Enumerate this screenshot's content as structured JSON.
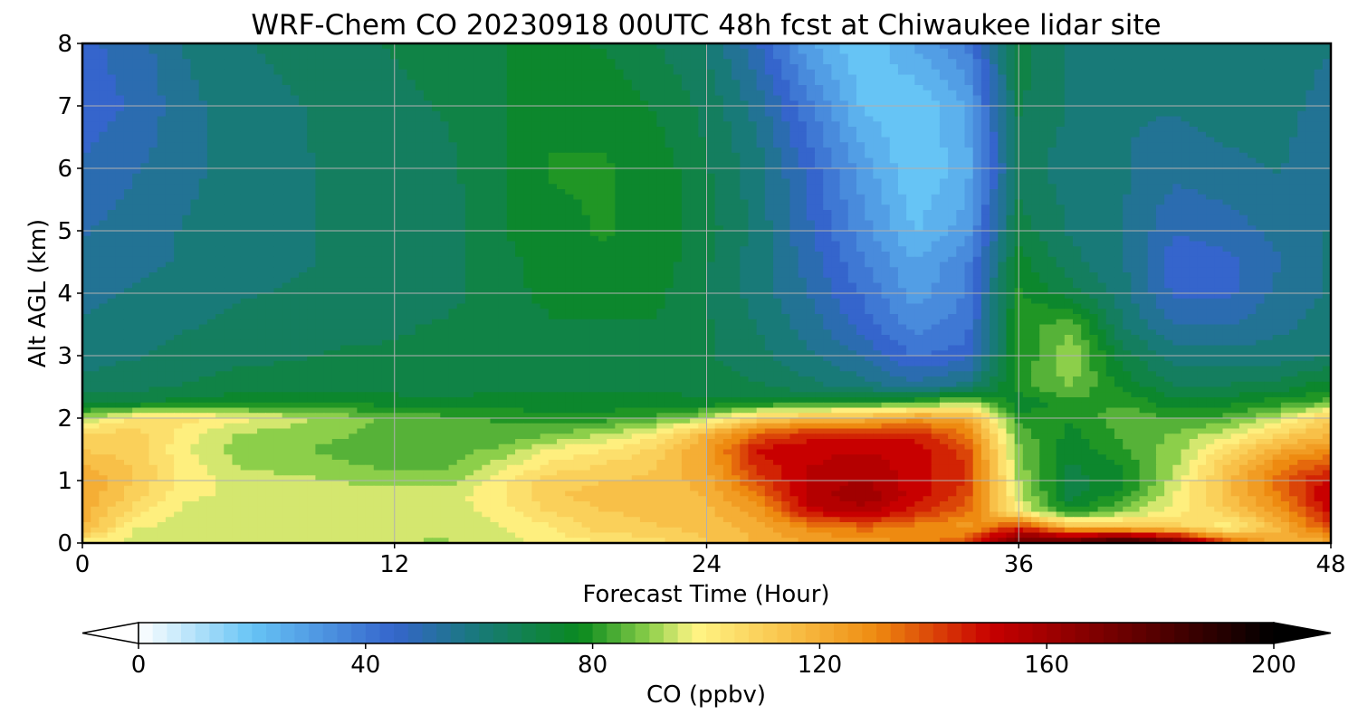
{
  "chart_data": {
    "type": "heatmap",
    "title": "WRF-Chem CO  20230918 00UTC 48h fcst at Chiwaukee lidar site",
    "xlabel": "Forecast Time (Hour)",
    "ylabel": "Alt AGL (km)",
    "xlim": [
      0,
      48
    ],
    "ylim": [
      0,
      8
    ],
    "xticks": [
      0,
      12,
      24,
      36,
      48
    ],
    "yticks": [
      0,
      1,
      2,
      3,
      4,
      5,
      6,
      7,
      8
    ],
    "grid": true,
    "colorbar": {
      "label": "CO  (ppbv)",
      "range": [
        0,
        200
      ],
      "ticks": [
        0,
        40,
        80,
        120,
        160,
        200
      ],
      "extend": "both",
      "stops": [
        {
          "value": 0,
          "color": "#ffffff"
        },
        {
          "value": 20,
          "color": "#66c4f5"
        },
        {
          "value": 45,
          "color": "#3565cc"
        },
        {
          "value": 60,
          "color": "#187a78"
        },
        {
          "value": 78,
          "color": "#0a8a1e"
        },
        {
          "value": 90,
          "color": "#8ccf4a"
        },
        {
          "value": 98,
          "color": "#fff585"
        },
        {
          "value": 115,
          "color": "#f8c048"
        },
        {
          "value": 130,
          "color": "#ee8a10"
        },
        {
          "value": 150,
          "color": "#c80000"
        },
        {
          "value": 175,
          "color": "#660000"
        },
        {
          "value": 200,
          "color": "#000000"
        }
      ]
    },
    "field": {
      "hours": [
        0,
        2,
        4,
        6,
        8,
        10,
        12,
        14,
        16,
        18,
        20,
        22,
        24,
        26,
        28,
        30,
        32,
        34,
        36,
        38,
        40,
        42,
        44,
        46,
        48
      ],
      "altitudes_km": [
        0,
        0.25,
        0.5,
        0.75,
        1.0,
        1.25,
        1.5,
        1.75,
        2.0,
        2.25,
        2.5,
        3.0,
        3.5,
        4.0,
        4.5,
        5.0,
        6.0,
        7.0,
        8.0
      ],
      "co_ppbv": [
        [
          100,
          95,
          93,
          93,
          93,
          93,
          93,
          92,
          95,
          100,
          102,
          105,
          112,
          118,
          122,
          125,
          128,
          140,
          178,
          180,
          195,
          178,
          140,
          118,
          120
        ],
        [
          118,
          98,
          95,
          94,
          94,
          94,
          93,
          93,
          97,
          102,
          110,
          112,
          115,
          120,
          130,
          135,
          130,
          125,
          145,
          118,
          115,
          110,
          98,
          118,
          140
        ],
        [
          120,
          105,
          96,
          96,
          96,
          95,
          95,
          94,
          100,
          108,
          112,
          114,
          116,
          125,
          150,
          155,
          145,
          135,
          100,
          78,
          90,
          100,
          110,
          125,
          150
        ],
        [
          122,
          110,
          98,
          97,
          97,
          96,
          96,
          95,
          102,
          112,
          115,
          115,
          118,
          132,
          155,
          162,
          150,
          140,
          95,
          70,
          80,
          98,
          115,
          132,
          155
        ],
        [
          122,
          112,
          100,
          96,
          94,
          92,
          90,
          90,
          100,
          110,
          112,
          114,
          120,
          140,
          155,
          158,
          150,
          142,
          92,
          70,
          76,
          95,
          115,
          135,
          150
        ],
        [
          118,
          112,
          100,
          92,
          90,
          88,
          86,
          86,
          95,
          104,
          108,
          112,
          122,
          145,
          152,
          155,
          150,
          142,
          90,
          72,
          78,
          92,
          112,
          130,
          140
        ],
        [
          112,
          110,
          98,
          90,
          88,
          86,
          85,
          85,
          88,
          98,
          102,
          108,
          124,
          148,
          152,
          152,
          150,
          140,
          88,
          74,
          82,
          90,
          105,
          120,
          128
        ],
        [
          108,
          110,
          100,
          92,
          90,
          88,
          86,
          84,
          84,
          86,
          92,
          100,
          118,
          135,
          145,
          145,
          145,
          132,
          85,
          76,
          84,
          88,
          95,
          108,
          118
        ],
        [
          92,
          104,
          104,
          100,
          95,
          90,
          86,
          84,
          82,
          80,
          80,
          84,
          92,
          110,
          115,
          118,
          125,
          122,
          80,
          78,
          86,
          82,
          84,
          95,
          112
        ],
        [
          70,
          72,
          75,
          76,
          76,
          76,
          75,
          74,
          74,
          74,
          74,
          74,
          74,
          76,
          78,
          80,
          82,
          92,
          74,
          80,
          82,
          74,
          76,
          80,
          85
        ],
        [
          65,
          66,
          68,
          70,
          70,
          70,
          70,
          70,
          72,
          72,
          72,
          72,
          70,
          68,
          64,
          60,
          55,
          60,
          80,
          88,
          76,
          68,
          68,
          70,
          76
        ],
        [
          60,
          62,
          64,
          66,
          67,
          68,
          68,
          68,
          70,
          70,
          70,
          70,
          68,
          64,
          58,
          52,
          42,
          45,
          78,
          92,
          70,
          60,
          60,
          60,
          62
        ],
        [
          58,
          60,
          62,
          64,
          65,
          66,
          67,
          68,
          70,
          72,
          72,
          72,
          68,
          62,
          55,
          45,
          35,
          40,
          80,
          85,
          62,
          52,
          52,
          56,
          60
        ],
        [
          56,
          58,
          60,
          62,
          63,
          64,
          65,
          66,
          70,
          74,
          74,
          74,
          68,
          60,
          52,
          42,
          30,
          38,
          78,
          70,
          60,
          46,
          46,
          54,
          58
        ],
        [
          55,
          56,
          58,
          60,
          62,
          63,
          64,
          66,
          70,
          76,
          76,
          76,
          68,
          60,
          50,
          38,
          28,
          36,
          75,
          64,
          58,
          44,
          46,
          52,
          58
        ],
        [
          52,
          55,
          58,
          60,
          62,
          63,
          64,
          65,
          72,
          76,
          78,
          76,
          70,
          60,
          48,
          35,
          22,
          30,
          70,
          62,
          58,
          48,
          50,
          54,
          58
        ],
        [
          48,
          52,
          56,
          60,
          62,
          63,
          64,
          66,
          72,
          78,
          78,
          76,
          68,
          60,
          45,
          30,
          18,
          25,
          65,
          60,
          58,
          54,
          56,
          58,
          52
        ],
        [
          45,
          48,
          56,
          60,
          62,
          64,
          66,
          68,
          72,
          76,
          76,
          72,
          66,
          55,
          38,
          22,
          18,
          28,
          68,
          62,
          58,
          58,
          60,
          60,
          55
        ],
        [
          46,
          50,
          58,
          62,
          64,
          66,
          68,
          70,
          72,
          74,
          72,
          68,
          62,
          48,
          28,
          18,
          28,
          38,
          70,
          62,
          58,
          60,
          60,
          60,
          58
        ]
      ]
    }
  }
}
